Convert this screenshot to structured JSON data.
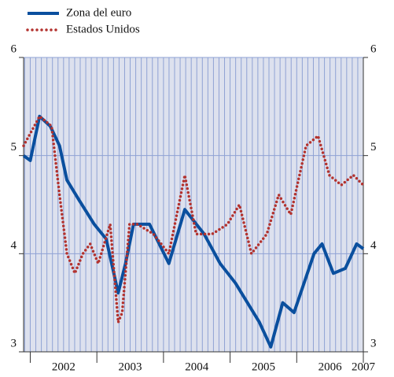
{
  "chart_data": {
    "type": "line",
    "series": [
      {
        "name": "Zona del euro",
        "color": "#0a4f9e",
        "x": [
          2001.9,
          2002.0,
          2002.14,
          2002.3,
          2002.44,
          2002.55,
          2002.73,
          2002.96,
          2003.14,
          2003.32,
          2003.43,
          2003.55,
          2003.79,
          2004.08,
          2004.32,
          2004.61,
          2004.85,
          2005.08,
          2005.44,
          2005.61,
          2005.79,
          2005.96,
          2006.26,
          2006.38,
          2006.55,
          2006.73,
          2006.9,
          2007.0
        ],
        "values": [
          5.0,
          4.95,
          5.4,
          5.3,
          5.1,
          4.75,
          4.55,
          4.3,
          4.15,
          3.6,
          3.9,
          4.3,
          4.3,
          3.9,
          4.45,
          4.2,
          3.9,
          3.7,
          3.3,
          3.05,
          3.5,
          3.4,
          4.0,
          4.1,
          3.8,
          3.85,
          4.1,
          4.05
        ]
      },
      {
        "name": "Estados Unidos",
        "color": "#b3322e",
        "x": [
          2001.9,
          2002.14,
          2002.32,
          2002.44,
          2002.55,
          2002.67,
          2002.79,
          2002.9,
          2003.02,
          2003.2,
          2003.32,
          2003.38,
          2003.49,
          2003.61,
          2003.85,
          2004.08,
          2004.32,
          2004.49,
          2004.73,
          2004.96,
          2005.14,
          2005.32,
          2005.55,
          2005.73,
          2005.91,
          2006.14,
          2006.32,
          2006.49,
          2006.67,
          2006.85,
          2007.0
        ],
        "values": [
          5.1,
          5.4,
          5.3,
          4.6,
          4.0,
          3.8,
          4.0,
          4.1,
          3.9,
          4.3,
          3.3,
          3.4,
          4.3,
          4.3,
          4.2,
          4.0,
          4.8,
          4.2,
          4.2,
          4.3,
          4.5,
          4.0,
          4.2,
          4.6,
          4.4,
          5.1,
          5.2,
          4.8,
          4.7,
          4.8,
          4.7
        ]
      }
    ],
    "xlim": [
      2001.9,
      2007.0
    ],
    "xticks": [
      {
        "value": 2002.5,
        "label": "2002"
      },
      {
        "value": 2003.5,
        "label": "2003"
      },
      {
        "value": 2004.5,
        "label": "2004"
      },
      {
        "value": 2005.5,
        "label": "2005"
      },
      {
        "value": 2006.5,
        "label": "2006"
      },
      {
        "value": 2007.0,
        "label": "2007"
      }
    ],
    "ylim": [
      3,
      6
    ],
    "yticks": [
      3,
      4,
      5,
      6
    ],
    "grid": true,
    "legend": "top-left"
  }
}
